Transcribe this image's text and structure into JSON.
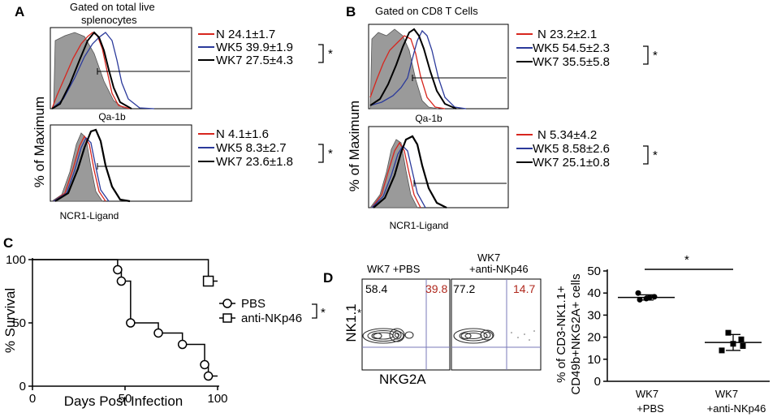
{
  "panels": {
    "A": {
      "label": "A",
      "title": [
        "Gated on total live",
        "splenocytes"
      ],
      "ylabel": "% of Maximum",
      "top": {
        "xlabel": "Qa-1b",
        "legend": [
          {
            "text": "N 24.1±1.7",
            "color": "#d7261e"
          },
          {
            "text": "WK5 39.9±1.9",
            "color": "#2b3a9b"
          },
          {
            "text": "WK7 27.5±4.3",
            "color": "#000000"
          }
        ],
        "sig": "*"
      },
      "bottom": {
        "xlabel": "NCR1-Ligand",
        "legend": [
          {
            "text": "N 4.1±1.6",
            "color": "#d7261e"
          },
          {
            "text": "WK5 8.3±2.7",
            "color": "#2b3a9b"
          },
          {
            "text": "WK7 23.6±1.8",
            "color": "#000000"
          }
        ],
        "sig": "*"
      }
    },
    "B": {
      "label": "B",
      "title": [
        "Gated on CD8 T Cells"
      ],
      "ylabel": "% of Maximum",
      "top": {
        "xlabel": "Qa-1b",
        "legend": [
          {
            "text": "N 23.2±2.1",
            "color": "#d7261e"
          },
          {
            "text": "WK5 54.5±2.3",
            "color": "#2b3a9b"
          },
          {
            "text": "WK7 35.5±5.8",
            "color": "#000000"
          }
        ],
        "sig": "*"
      },
      "bottom": {
        "xlabel": "NCR1-Ligand",
        "legend": [
          {
            "text": "N 5.34±4.2",
            "color": "#d7261e"
          },
          {
            "text": "WK5 8.58±2.6",
            "color": "#2b3a9b"
          },
          {
            "text": "WK7 25.1±0.8",
            "color": "#000000"
          }
        ],
        "sig": "*"
      }
    },
    "D": {
      "label": "D",
      "flow": [
        {
          "title": [
            "WK7 +PBS"
          ],
          "q_left": "58.4",
          "q_right": "39.8"
        },
        {
          "title": [
            "WK7",
            "+anti-NKp46"
          ],
          "q_left": "77.2",
          "q_right": "14.7"
        }
      ],
      "flow_ylabel": "NK1.1",
      "flow_xlabel": "NKG2A",
      "sig": "*"
    }
  },
  "colors": {
    "red": "#d7261e",
    "blue": "#2b3a9b",
    "gray": "#9a9a9a"
  },
  "chart_data": [
    {
      "type": "line",
      "panel": "C",
      "title": "",
      "xlabel": "Days Post Infection",
      "ylabel": "% Survival",
      "xlim": [
        0,
        100
      ],
      "ylim": [
        0,
        100
      ],
      "xticks": [
        0,
        50,
        100
      ],
      "yticks": [
        0,
        50,
        100
      ],
      "legend": [
        "PBS",
        "anti-NKp46"
      ],
      "sig": "*",
      "series": [
        {
          "name": "PBS",
          "marker": "circle",
          "x": [
            0,
            46,
            48,
            53,
            68,
            81,
            93,
            95,
            100
          ],
          "y": [
            100,
            92,
            83,
            50,
            42,
            33,
            17,
            8,
            8
          ]
        },
        {
          "name": "anti-NKp46",
          "marker": "square",
          "x": [
            0,
            95,
            100
          ],
          "y": [
            100,
            83,
            83
          ]
        }
      ]
    },
    {
      "type": "scatter",
      "panel": "D-right",
      "title": "",
      "ylabel": "% of CD3-NK1.1+ CD49b+NKG2A+ cells",
      "ylabel_lines": [
        "% of CD3-NK1.1+",
        "CD49b+NKG2A+ cells"
      ],
      "ylim": [
        0,
        50
      ],
      "yticks": [
        0,
        10,
        20,
        30,
        40,
        50
      ],
      "categories": [
        [
          "WK7",
          "+PBS"
        ],
        [
          "WK7",
          "+anti-NKp46"
        ]
      ],
      "sig": "*",
      "series": [
        {
          "name": "WK7 +PBS",
          "marker": "circle",
          "values": [
            40,
            37.5,
            37,
            38,
            38.3
          ],
          "mean": 38,
          "err": 1.2
        },
        {
          "name": "WK7 +anti-NKp46",
          "marker": "square",
          "values": [
            22,
            19,
            14,
            17,
            16
          ],
          "mean": 17.6,
          "err": 3.6
        }
      ]
    }
  ]
}
